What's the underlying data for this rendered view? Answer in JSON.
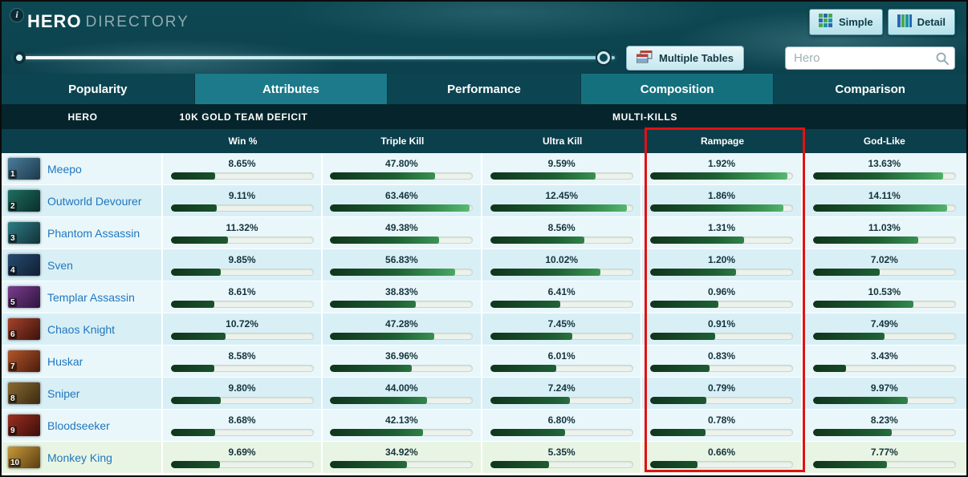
{
  "colors": {
    "highlight": "#e01212",
    "link": "#2077bd",
    "header_dark": "#0c414d",
    "tab_selected": "#1d7a8a",
    "bar_gradient": [
      "#10351c",
      "#5fbe77"
    ]
  },
  "header": {
    "info_glyph": "i",
    "title_bold": "HERO",
    "title_light": "DIRECTORY",
    "view_buttons": [
      {
        "label": "Simple"
      },
      {
        "label": "Detail"
      }
    ]
  },
  "toolbar": {
    "multiple_tables_label": "Multiple Tables",
    "search_placeholder": "Hero",
    "search_value": "",
    "slider": {
      "min_pct": 0,
      "max_pct": 97
    }
  },
  "tabs": [
    {
      "label": "Popularity",
      "state": "default"
    },
    {
      "label": "Attributes",
      "state": "selected"
    },
    {
      "label": "Performance",
      "state": "default"
    },
    {
      "label": "Composition",
      "state": "highlight"
    },
    {
      "label": "Comparison",
      "state": "default"
    }
  ],
  "table": {
    "group_headers": [
      {
        "label": "HERO"
      },
      {
        "label": "10K GOLD TEAM DEFICIT"
      },
      {
        "label": "MULTI-KILLS"
      }
    ],
    "columns": [
      {
        "label": "Win %",
        "bar_scale": 28,
        "highlighted": false
      },
      {
        "label": "Triple Kill",
        "bar_scale": 65,
        "highlighted": false
      },
      {
        "label": "Ultra Kill",
        "bar_scale": 13,
        "highlighted": false
      },
      {
        "label": "Rampage",
        "bar_scale": 2,
        "highlighted": true
      },
      {
        "label": "God-Like",
        "bar_scale": 15,
        "highlighted": false
      }
    ],
    "rows": [
      {
        "rank": 1,
        "hero": "Meepo",
        "icon_colors": [
          "#4a7d9b",
          "#1c3a4a"
        ],
        "values": [
          8.65,
          47.8,
          9.59,
          1.92,
          13.63
        ]
      },
      {
        "rank": 2,
        "hero": "Outworld Devourer",
        "icon_colors": [
          "#1f6e62",
          "#0a2e2a"
        ],
        "values": [
          9.11,
          63.46,
          12.45,
          1.86,
          14.11
        ]
      },
      {
        "rank": 3,
        "hero": "Phantom Assassin",
        "icon_colors": [
          "#2e7d86",
          "#123138"
        ],
        "values": [
          11.32,
          49.38,
          8.56,
          1.31,
          11.03
        ]
      },
      {
        "rank": 4,
        "hero": "Sven",
        "icon_colors": [
          "#274b71",
          "#101f33"
        ],
        "values": [
          9.85,
          56.83,
          10.02,
          1.2,
          7.02
        ]
      },
      {
        "rank": 5,
        "hero": "Templar Assassin",
        "icon_colors": [
          "#7a3d8c",
          "#2e1440"
        ],
        "values": [
          8.61,
          38.83,
          6.41,
          0.96,
          10.53
        ]
      },
      {
        "rank": 6,
        "hero": "Chaos Knight",
        "icon_colors": [
          "#a5422a",
          "#3c120c"
        ],
        "values": [
          10.72,
          47.28,
          7.45,
          0.91,
          7.49
        ]
      },
      {
        "rank": 7,
        "hero": "Huskar",
        "icon_colors": [
          "#b3562a",
          "#4a1c0c"
        ],
        "values": [
          8.58,
          36.96,
          6.01,
          0.83,
          3.43
        ]
      },
      {
        "rank": 8,
        "hero": "Sniper",
        "icon_colors": [
          "#8a6a33",
          "#3a2a10"
        ],
        "values": [
          9.8,
          44.0,
          7.24,
          0.79,
          9.97
        ]
      },
      {
        "rank": 9,
        "hero": "Bloodseeker",
        "icon_colors": [
          "#9c2f22",
          "#3c0e08"
        ],
        "values": [
          8.68,
          42.13,
          6.8,
          0.78,
          8.23
        ]
      },
      {
        "rank": 10,
        "hero": "Monkey King",
        "icon_colors": [
          "#c79a3a",
          "#5a3c12"
        ],
        "values": [
          9.69,
          34.92,
          5.35,
          0.66,
          7.77
        ],
        "bg": "#e9f5e4"
      }
    ]
  }
}
